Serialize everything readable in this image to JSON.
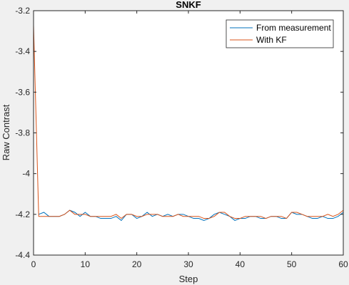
{
  "chart_data": {
    "type": "line",
    "title": "SNKF",
    "xlabel": "Step",
    "ylabel": "Raw Contrast",
    "xlim": [
      0,
      60
    ],
    "ylim": [
      -4.4,
      -3.2
    ],
    "xticks": [
      0,
      10,
      20,
      30,
      40,
      50,
      60
    ],
    "yticks": [
      -4.4,
      -4.2,
      -4.0,
      -3.8,
      -3.6,
      -3.4,
      -3.2
    ],
    "ytick_labels": [
      "-4.4",
      "-4.2",
      "-4",
      "-3.8",
      "-3.6",
      "-3.4",
      "-3.2"
    ],
    "grid": false,
    "legend_position": "top-right",
    "series": [
      {
        "name": "From measurement",
        "color": "#0072BD",
        "x": [
          1,
          2,
          3,
          4,
          5,
          6,
          7,
          8,
          9,
          10,
          11,
          12,
          13,
          14,
          15,
          16,
          17,
          18,
          19,
          20,
          21,
          22,
          23,
          24,
          25,
          26,
          27,
          28,
          29,
          30,
          31,
          32,
          33,
          34,
          35,
          36,
          37,
          38,
          39,
          40,
          41,
          42,
          43,
          44,
          45,
          46,
          47,
          48,
          49,
          50,
          51,
          52,
          53,
          54,
          55,
          56,
          57,
          58,
          59,
          60
        ],
        "values": [
          -4.2,
          -4.19,
          -4.21,
          -4.21,
          -4.21,
          -4.2,
          -4.18,
          -4.19,
          -4.21,
          -4.19,
          -4.21,
          -4.21,
          -4.22,
          -4.22,
          -4.22,
          -4.21,
          -4.23,
          -4.2,
          -4.2,
          -4.22,
          -4.21,
          -4.19,
          -4.21,
          -4.2,
          -4.21,
          -4.2,
          -4.21,
          -4.2,
          -4.2,
          -4.21,
          -4.22,
          -4.22,
          -4.23,
          -4.22,
          -4.2,
          -4.19,
          -4.2,
          -4.21,
          -4.23,
          -4.22,
          -4.22,
          -4.21,
          -4.21,
          -4.22,
          -4.22,
          -4.21,
          -4.21,
          -4.22,
          -4.22,
          -4.19,
          -4.2,
          -4.2,
          -4.21,
          -4.22,
          -4.22,
          -4.21,
          -4.22,
          -4.22,
          -4.21,
          -4.19
        ]
      },
      {
        "name": "With KF",
        "color": "#D95319",
        "x": [
          0,
          1,
          2,
          3,
          4,
          5,
          6,
          7,
          8,
          9,
          10,
          11,
          12,
          13,
          14,
          15,
          16,
          17,
          18,
          19,
          20,
          21,
          22,
          23,
          24,
          25,
          26,
          27,
          28,
          29,
          30,
          31,
          32,
          33,
          34,
          35,
          36,
          37,
          38,
          39,
          40,
          41,
          42,
          43,
          44,
          45,
          46,
          47,
          48,
          49,
          50,
          51,
          52,
          53,
          54,
          55,
          56,
          57,
          58,
          59,
          60
        ],
        "values": [
          -3.27,
          -4.21,
          -4.21,
          -4.21,
          -4.21,
          -4.21,
          -4.2,
          -4.18,
          -4.2,
          -4.2,
          -4.2,
          -4.21,
          -4.21,
          -4.21,
          -4.21,
          -4.21,
          -4.2,
          -4.22,
          -4.2,
          -4.2,
          -4.21,
          -4.21,
          -4.2,
          -4.2,
          -4.2,
          -4.21,
          -4.21,
          -4.21,
          -4.2,
          -4.21,
          -4.21,
          -4.21,
          -4.21,
          -4.22,
          -4.22,
          -4.21,
          -4.19,
          -4.19,
          -4.21,
          -4.22,
          -4.22,
          -4.21,
          -4.21,
          -4.21,
          -4.21,
          -4.22,
          -4.21,
          -4.21,
          -4.21,
          -4.22,
          -4.19,
          -4.19,
          -4.2,
          -4.21,
          -4.21,
          -4.21,
          -4.21,
          -4.2,
          -4.21,
          -4.2,
          -4.18
        ]
      }
    ]
  }
}
